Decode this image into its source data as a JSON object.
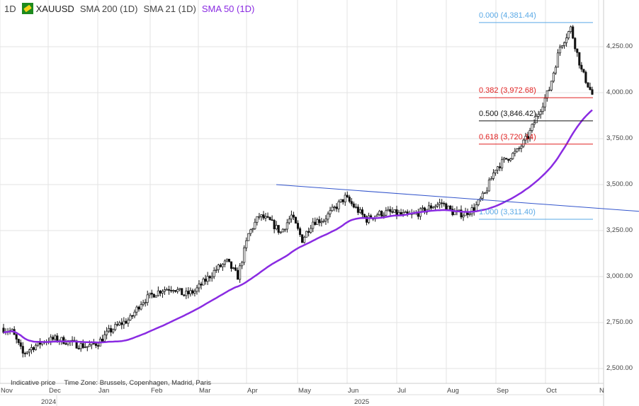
{
  "legend": {
    "interval": "1D",
    "symbol": "XAUUSD",
    "ind1": "SMA 200 (1D)",
    "ind2": "SMA 21 (1D)",
    "ind3": "SMA 50 (1D)",
    "sma50_color": "#8a2be2"
  },
  "footer": {
    "note": "Indicative price",
    "timezone": "Time Zone: Brussels, Copenhagen, Madrid, Paris"
  },
  "chart_data": {
    "type": "candlestick",
    "title": "XAUUSD 1D",
    "ylim": [
      2450,
      4450
    ],
    "yticks": [
      "2,500.00",
      "2,750.00",
      "3,000.00",
      "3,250.00",
      "3,500.00",
      "3,750.00",
      "4,000.00",
      "4,250.00"
    ],
    "ytick_values": [
      2500,
      2750,
      3000,
      3250,
      3500,
      3750,
      4000,
      4250
    ],
    "xticks": [
      "Nov",
      "Dec",
      "Jan",
      "Feb",
      "Mar",
      "Apr",
      "May",
      "Jun",
      "Jul",
      "Aug",
      "Sep",
      "Oct",
      "N"
    ],
    "years": [
      "2024",
      "2025"
    ],
    "weekly_closes": [
      2700,
      2580,
      2620,
      2650,
      2660,
      2650,
      2630,
      2620,
      2640,
      2700,
      2740,
      2770,
      2860,
      2900,
      2930,
      2940,
      2900,
      2920,
      2980,
      3040,
      3080,
      3000,
      3230,
      3330,
      3300,
      3240,
      3330,
      3200,
      3300,
      3310,
      3370,
      3430,
      3370,
      3310,
      3340,
      3350,
      3340,
      3330,
      3350,
      3380,
      3400,
      3350,
      3340,
      3370,
      3450,
      3590,
      3640,
      3680,
      3760,
      3890,
      4020,
      4250,
      4350,
      4120,
      3990
    ],
    "start_price": 2720,
    "sma_period": 50,
    "fibonacci": [
      {
        "label": "0.000 (4,381.44)",
        "value": 4381.44,
        "color": "#5aa9e6"
      },
      {
        "label": "0.382 (3,972.68)",
        "value": 3972.68,
        "color": "#e02020"
      },
      {
        "label": "0.500 (3,846.42)",
        "value": 3846.42,
        "color": "#111111"
      },
      {
        "label": "0.618 (3,720.14)",
        "value": 3720.14,
        "color": "#e02020"
      },
      {
        "label": "1.000 (3,311.40)",
        "value": 3311.4,
        "color": "#5aa9e6"
      }
    ],
    "trendline": {
      "from": [
        "Apr 22 2025",
        3500
      ],
      "to": [
        "Nov 2025",
        3355
      ],
      "color": "#3355cc"
    }
  }
}
